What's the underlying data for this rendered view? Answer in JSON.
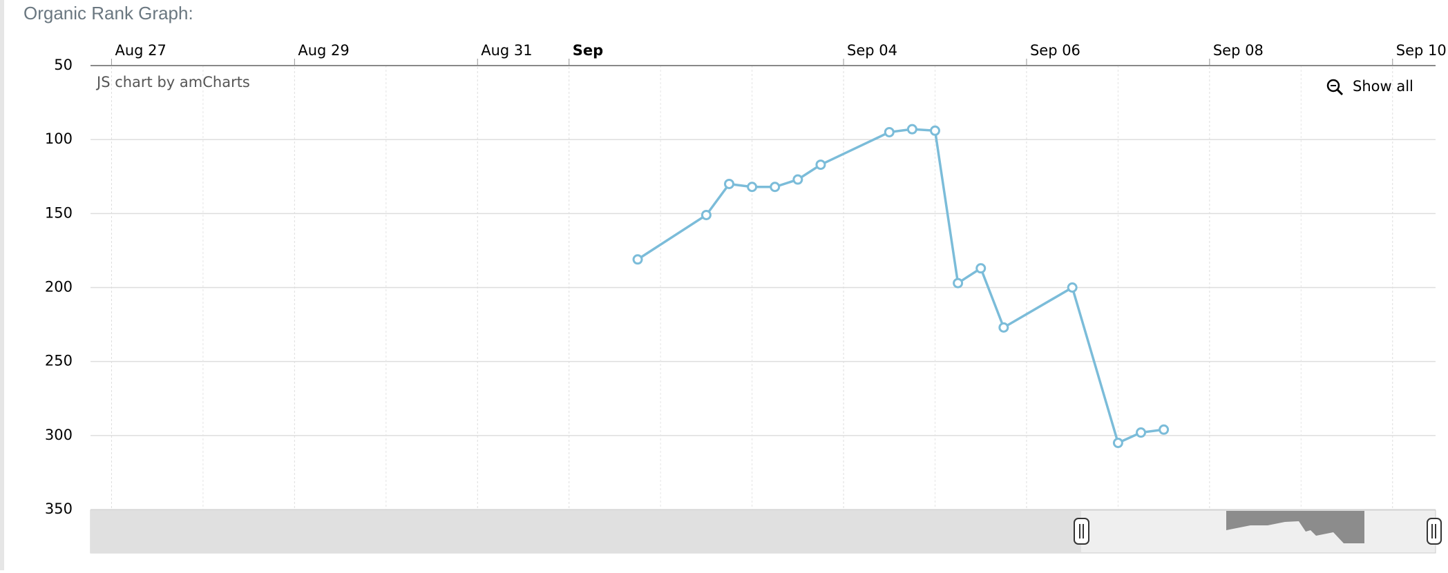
{
  "chart_data": {
    "type": "line",
    "title": "Organic Rank Graph:",
    "credit": "JS chart by amCharts",
    "zoom_button": "Show all",
    "x": [
      5.75,
      6.5,
      6.75,
      7,
      7.25,
      7.5,
      7.75,
      8.5,
      8.75,
      9,
      9.25,
      9.5,
      9.75,
      10.5,
      11,
      11.25,
      11.5
    ],
    "series": [
      {
        "color": "#7bbcd9",
        "values": [
          181,
          151,
          130,
          132,
          132,
          127,
          117,
          95,
          93,
          94,
          197,
          187,
          227,
          200,
          305,
          298,
          296
        ]
      }
    ],
    "xlim": [
      -0.23,
      14.47
    ],
    "xticks": [
      {
        "value": 0,
        "label": "Aug 27"
      },
      {
        "value": 2,
        "label": "Aug 29"
      },
      {
        "value": 4,
        "label": "Aug 31"
      },
      {
        "value": 5,
        "label": "Sep",
        "bold": true
      },
      {
        "value": 8,
        "label": "Sep 04"
      },
      {
        "value": 10,
        "label": "Sep 06"
      },
      {
        "value": 12,
        "label": "Sep 08"
      },
      {
        "value": 14,
        "label": "Sep 10"
      }
    ],
    "minor_xticks": [
      1,
      3,
      6,
      7,
      9,
      11,
      13
    ],
    "ylim": [
      50,
      350
    ],
    "y_reversed": true,
    "yticks": [
      50,
      100,
      150,
      200,
      250,
      300,
      350
    ],
    "grid": true
  }
}
